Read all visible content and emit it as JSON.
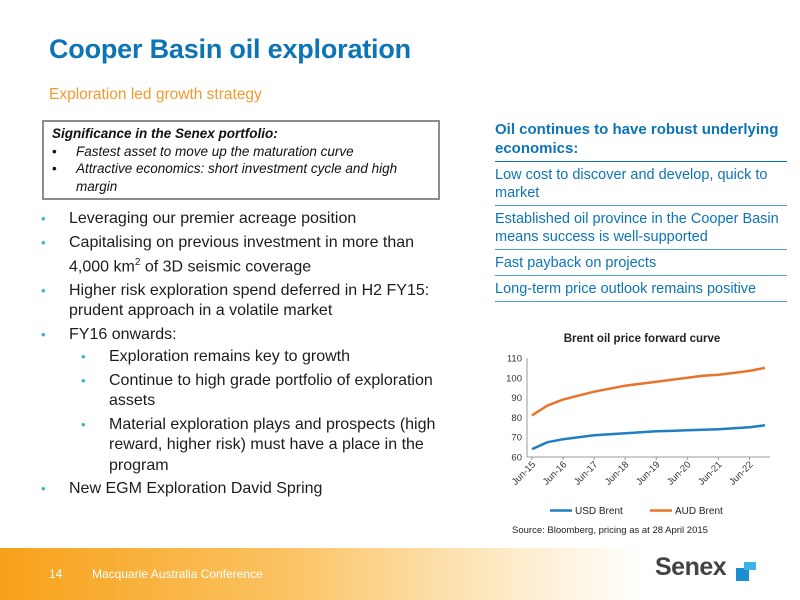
{
  "header": {
    "title": "Cooper Basin oil exploration",
    "subtitle": "Exploration led growth strategy"
  },
  "significance": {
    "heading": "Significance in the Senex portfolio:",
    "items": [
      "Fastest asset to move up the maturation curve",
      "Attractive economics: short investment cycle and high margin"
    ]
  },
  "bullets": {
    "b1": "Leveraging our premier acreage position",
    "b2_pre": "Capitalising on previous investment in more than 4,000 km",
    "b2_sup": "2",
    "b2_post": " of 3D seismic coverage",
    "b3": "Higher risk exploration spend deferred in H2 FY15: prudent approach in a volatile market",
    "b4": "FY16 onwards:",
    "sub": [
      "Exploration remains key to growth",
      "Continue to high grade portfolio of exploration assets",
      "Material exploration plays and prospects (high reward, higher risk) must have a place in the program"
    ],
    "b5": "New EGM Exploration David Spring"
  },
  "economics": {
    "heading": "Oil continues to have robust underlying economics:",
    "items": [
      "Low cost to discover and develop, quick to market",
      "Established oil province in the Cooper Basin means success is well-supported",
      "Fast payback on projects",
      "Long-term price outlook remains positive"
    ]
  },
  "chart_data": {
    "type": "line",
    "title": "Brent oil price forward curve",
    "xlabel": "",
    "ylabel": "",
    "ylim": [
      60,
      110
    ],
    "yticks": [
      60,
      70,
      80,
      90,
      100,
      110
    ],
    "x_ticks": [
      "Jun-15",
      "Jun-16",
      "Jun-17",
      "Jun-18",
      "Jun-19",
      "Jun-20",
      "Jun-21",
      "Jun-22"
    ],
    "x": [
      "Jun-15",
      "Dec-15",
      "Jun-16",
      "Dec-16",
      "Jun-17",
      "Dec-17",
      "Jun-18",
      "Dec-18",
      "Jun-19",
      "Dec-19",
      "Jun-20",
      "Dec-20",
      "Jun-21",
      "Dec-21",
      "Jun-22",
      "Dec-22"
    ],
    "series": [
      {
        "name": "USD Brent",
        "color": "#1f7fc1",
        "values": [
          64,
          67.5,
          69,
          70,
          71,
          71.5,
          72,
          72.5,
          73,
          73.2,
          73.5,
          73.8,
          74,
          74.5,
          75,
          76
        ]
      },
      {
        "name": "AUD Brent",
        "color": "#e8732a",
        "values": [
          81,
          86,
          89,
          91,
          93,
          94.5,
          96,
          97,
          98,
          99,
          100,
          101,
          101.5,
          102.5,
          103.5,
          105
        ]
      }
    ],
    "grid": false,
    "legend": "bottom",
    "source": "Source: Bloomberg, pricing as at 28 April 2015"
  },
  "footer": {
    "page_number": "14",
    "conference": "Macquarie Australia Conference",
    "logo_text": "Senex"
  }
}
